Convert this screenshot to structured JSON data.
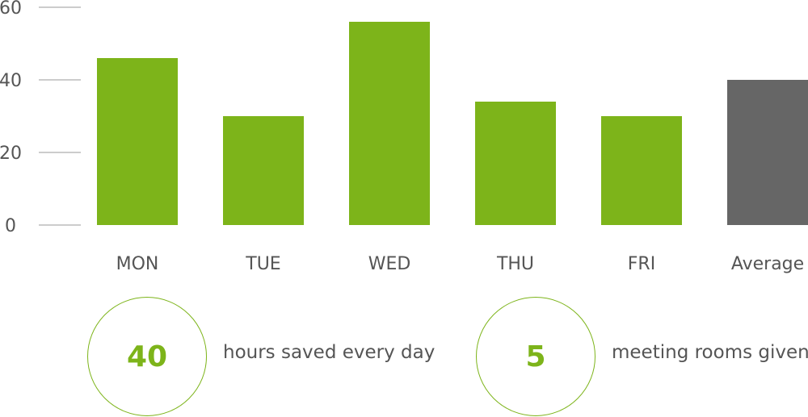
{
  "chart_data": {
    "type": "bar",
    "title": "",
    "xlabel": "",
    "ylabel": "",
    "categories": [
      "MON",
      "TUE",
      "WED",
      "THU",
      "FRI",
      "Average"
    ],
    "values": [
      46,
      30,
      56,
      34,
      30,
      40
    ],
    "ylim": [
      0,
      60
    ],
    "yticks": [
      0,
      20,
      40,
      60
    ],
    "grid": false,
    "legend": "none",
    "colors": {
      "bar": "#7db41a",
      "average_bar": "#666666",
      "axis_text": "#555555",
      "tick_line": "#9a9a9a"
    }
  },
  "stats": [
    {
      "value": "40",
      "label": "hours saved every day"
    },
    {
      "value": "5",
      "label": "meeting rooms given"
    }
  ],
  "colors": {
    "accent": "#7db41a"
  }
}
